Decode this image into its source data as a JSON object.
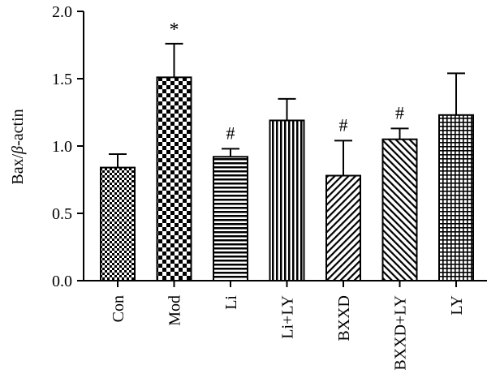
{
  "chart_data": {
    "type": "bar",
    "title": "",
    "xlabel": "",
    "ylabel_main": "Bax/",
    "ylabel_beta": "β",
    "ylabel_tail": "-actin",
    "ylim": [
      0,
      2.0
    ],
    "yticks": [
      "0.0",
      "0.5",
      "1.0",
      "1.5",
      "2.0"
    ],
    "ytick_values": [
      0,
      0.5,
      1.0,
      1.5,
      2.0
    ],
    "grid": false,
    "categories": [
      "Con",
      "Mod",
      "Li",
      "Li+LY",
      "BXXD",
      "BXXD+LY",
      "LY"
    ],
    "values": [
      0.84,
      1.51,
      0.92,
      1.19,
      0.78,
      1.05,
      1.23
    ],
    "error_upper": [
      0.94,
      1.76,
      0.98,
      1.35,
      1.04,
      1.13,
      1.54
    ],
    "annotations": [
      "",
      "*",
      "#",
      "",
      "#",
      "#",
      ""
    ],
    "patterns": [
      "checker-small",
      "checker-large",
      "horizontal-lines",
      "vertical-lines",
      "diagonal-up",
      "diagonal-down",
      "grid"
    ]
  }
}
